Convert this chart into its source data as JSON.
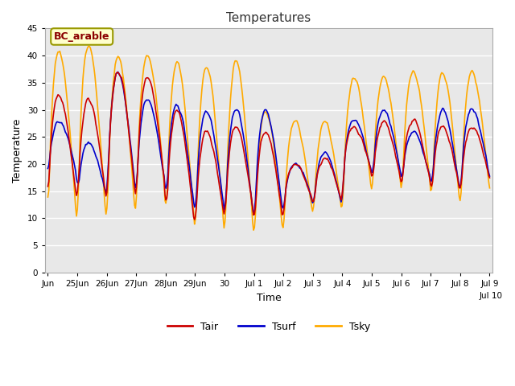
{
  "title": "Temperatures",
  "xlabel": "Time",
  "ylabel": "Temperature",
  "ylim": [
    0,
    45
  ],
  "yticks": [
    0,
    5,
    10,
    15,
    20,
    25,
    30,
    35,
    40,
    45
  ],
  "background_color": "#e8e8e8",
  "figure_color": "#ffffff",
  "grid_color": "#ffffff",
  "annotation_text": "BC_arable",
  "annotation_bg": "#ffffcc",
  "annotation_border": "#999900",
  "annotation_text_color": "#8b0000",
  "line_colors": {
    "Tair": "#cc0000",
    "Tsurf": "#0000cc",
    "Tsky": "#ffaa00"
  },
  "line_widths": {
    "Tair": 1.2,
    "Tsurf": 1.2,
    "Tsky": 1.2
  },
  "date_labels": [
    "Jun\n25",
    "Jun\n26",
    "Jun\n27",
    "Jun\n28",
    "Jun\n29",
    "Jun\n30",
    "Jul\n1",
    "Jul\n2",
    "Jul\n3",
    "Jul\n4",
    "Jul\n5",
    "Jul\n6",
    "Jul\n7",
    "Jul\n8",
    "Jul\n9",
    "Jul\n10"
  ],
  "first_label": "Jun",
  "n_points": 480,
  "tair_mins": [
    13,
    13,
    13,
    15,
    8,
    10,
    10,
    9,
    13,
    12,
    18,
    16,
    16,
    14,
    17,
    17
  ],
  "tair_maxs": [
    33,
    32,
    37,
    36,
    30,
    26,
    27,
    26,
    20,
    21,
    27,
    28,
    28,
    27,
    27,
    19
  ],
  "tsurf_mins": [
    18,
    14,
    14,
    16,
    11,
    11,
    10,
    10,
    13,
    12,
    18,
    17,
    17,
    14,
    17,
    17
  ],
  "tsurf_maxs": [
    28,
    24,
    37,
    32,
    31,
    30,
    30,
    30,
    20,
    22,
    28,
    30,
    26,
    30,
    30,
    17
  ],
  "tsky_mins": [
    9,
    9,
    9,
    14,
    7,
    7,
    6,
    6,
    10,
    10,
    14,
    15,
    15,
    11,
    14,
    15
  ],
  "tsky_maxs": [
    41,
    42,
    40,
    40,
    39,
    38,
    39,
    30,
    28,
    28,
    36,
    36,
    37,
    37,
    37,
    16
  ]
}
